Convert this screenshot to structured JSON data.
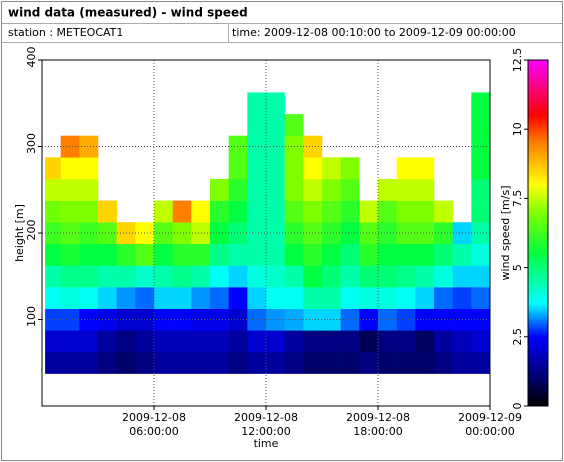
{
  "chart_data": {
    "type": "heatmap",
    "title": "wind data (measured) - wind speed",
    "annotations": [
      "station : METEOCAT1",
      "time: 2009-12-08 00:10:00 to 2009-12-09 00:00:00"
    ],
    "x_label": "time",
    "y_label": "height [m]",
    "colorbar_label": "wind speed [m/s]",
    "x": [
      "2009-12-08T00:10",
      "2009-12-08T01:00",
      "2009-12-08T02:00",
      "2009-12-08T03:00",
      "2009-12-08T04:00",
      "2009-12-08T05:00",
      "2009-12-08T06:00",
      "2009-12-08T07:00",
      "2009-12-08T08:00",
      "2009-12-08T09:00",
      "2009-12-08T10:00",
      "2009-12-08T11:00",
      "2009-12-08T12:00",
      "2009-12-08T13:00",
      "2009-12-08T14:00",
      "2009-12-08T15:00",
      "2009-12-08T16:00",
      "2009-12-08T17:00",
      "2009-12-08T18:00",
      "2009-12-08T19:00",
      "2009-12-08T20:00",
      "2009-12-08T21:00",
      "2009-12-08T22:00",
      "2009-12-08T23:00"
    ],
    "y": [
      50,
      75,
      100,
      125,
      150,
      175,
      200,
      225,
      250,
      275,
      300,
      325,
      350
    ],
    "z": [
      [
        1.5,
        1.5,
        1.5,
        1.2,
        1.0,
        1.2,
        1.5,
        1.5,
        1.5,
        1.5,
        1.2,
        1.5,
        1.5,
        1.2,
        1.0,
        1.0,
        1.0,
        1.2,
        1.0,
        1.0,
        1.0,
        1.2,
        1.5,
        1.5
      ],
      [
        2.0,
        2.0,
        2.0,
        1.5,
        1.2,
        1.5,
        1.8,
        1.8,
        1.8,
        1.8,
        1.5,
        2.0,
        2.0,
        1.5,
        1.2,
        1.2,
        1.2,
        0.8,
        1.2,
        1.2,
        0.9,
        1.5,
        1.8,
        2.0
      ],
      [
        2.8,
        2.8,
        2.5,
        2.3,
        2.0,
        2.0,
        2.5,
        2.5,
        2.3,
        2.3,
        2.0,
        3.0,
        3.2,
        3.3,
        3.5,
        3.5,
        3.0,
        2.5,
        3.0,
        2.8,
        2.5,
        2.5,
        2.5,
        2.5
      ],
      [
        3.8,
        4.0,
        3.8,
        3.5,
        3.2,
        3.0,
        3.5,
        3.5,
        3.2,
        3.0,
        2.5,
        3.5,
        3.8,
        3.8,
        4.5,
        4.5,
        3.8,
        4.0,
        4.0,
        3.8,
        3.5,
        3.0,
        2.8,
        3.0
      ],
      [
        4.5,
        4.8,
        4.8,
        4.5,
        4.5,
        4.2,
        4.5,
        4.8,
        4.5,
        3.8,
        3.5,
        4.0,
        4.2,
        4.5,
        5.5,
        5.0,
        4.5,
        5.0,
        5.0,
        4.8,
        4.5,
        4.0,
        3.5,
        3.5
      ],
      [
        5.5,
        5.8,
        5.5,
        5.5,
        6.0,
        6.5,
        5.5,
        6.0,
        6.0,
        4.8,
        4.5,
        4.5,
        4.5,
        5.5,
        6.0,
        5.5,
        5.0,
        6.0,
        5.5,
        5.5,
        5.5,
        5.0,
        4.5,
        4.0
      ],
      [
        6.2,
        6.5,
        6.2,
        6.5,
        8.5,
        8.0,
        6.5,
        7.0,
        7.5,
        5.5,
        5.0,
        4.5,
        4.5,
        6.0,
        6.5,
        6.0,
        5.5,
        6.5,
        6.0,
        6.5,
        6.5,
        6.0,
        3.5,
        4.5
      ],
      [
        6.8,
        7.0,
        7.0,
        8.5,
        null,
        null,
        7.5,
        9.5,
        8.0,
        6.0,
        5.5,
        4.5,
        4.5,
        6.5,
        7.0,
        6.5,
        6.0,
        7.5,
        6.5,
        7.0,
        7.0,
        7.5,
        null,
        5.0
      ],
      [
        7.5,
        7.5,
        7.5,
        null,
        null,
        null,
        null,
        null,
        null,
        7.0,
        6.0,
        4.5,
        4.5,
        7.0,
        7.5,
        7.0,
        6.5,
        null,
        7.5,
        7.5,
        7.5,
        null,
        null,
        5.0
      ],
      [
        8.5,
        8.0,
        8.0,
        null,
        null,
        null,
        null,
        null,
        null,
        null,
        6.5,
        4.5,
        4.5,
        7.0,
        8.0,
        7.5,
        7.0,
        null,
        null,
        8.0,
        8.0,
        null,
        null,
        5.5
      ],
      [
        null,
        9.5,
        9.0,
        null,
        null,
        null,
        null,
        null,
        null,
        null,
        6.5,
        4.5,
        4.5,
        7.0,
        8.5,
        null,
        null,
        null,
        null,
        null,
        null,
        null,
        null,
        5.5
      ],
      [
        null,
        null,
        null,
        null,
        null,
        null,
        null,
        null,
        null,
        null,
        null,
        4.5,
        4.5,
        6.5,
        null,
        null,
        null,
        null,
        null,
        null,
        null,
        null,
        null,
        5.5
      ],
      [
        null,
        null,
        null,
        null,
        null,
        null,
        null,
        null,
        null,
        null,
        null,
        4.5,
        4.5,
        null,
        null,
        null,
        null,
        null,
        null,
        null,
        null,
        null,
        null,
        5.5
      ]
    ],
    "xlim": [
      "2009-12-08T00:00",
      "2009-12-09T00:00"
    ],
    "xticks": [
      {
        "value": "2009-12-08T06:00",
        "label": "2009-12-08 06:00:00"
      },
      {
        "value": "2009-12-08T12:00",
        "label": "2009-12-08 12:00:00"
      },
      {
        "value": "2009-12-08T18:00",
        "label": "2009-12-08 18:00:00"
      },
      {
        "value": "2009-12-09T00:00",
        "label": "2009-12-09 00:00:00"
      }
    ],
    "ylim": [
      0,
      400
    ],
    "yticks": [
      100,
      200,
      300,
      400
    ],
    "clim": [
      0,
      12.5
    ],
    "cticks": [
      0,
      2.5,
      5,
      7.5,
      10,
      12.5
    ],
    "colorscale": [
      [
        0,
        "#000000"
      ],
      [
        1.2,
        "#000080"
      ],
      [
        2.5,
        "#0000ff"
      ],
      [
        3.7,
        "#00ffff"
      ],
      [
        5.5,
        "#00ff40"
      ],
      [
        7,
        "#80ff00"
      ],
      [
        8,
        "#ffff00"
      ],
      [
        9.5,
        "#ff8000"
      ],
      [
        10.5,
        "#ff0000"
      ],
      [
        12.5,
        "#ff00ff"
      ]
    ],
    "grid": true
  }
}
